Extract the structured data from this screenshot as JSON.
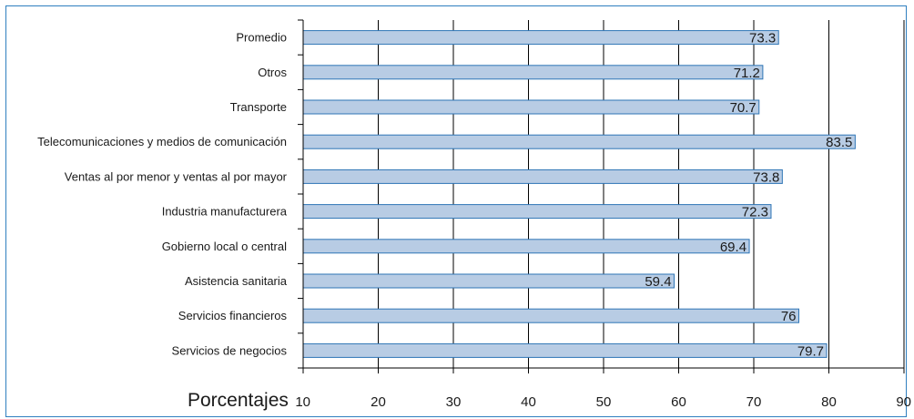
{
  "chart_data": {
    "type": "bar",
    "orientation": "horizontal",
    "categories": [
      "Promedio",
      "Otros",
      "Transporte",
      "Telecomunicaciones y medios de comunicación",
      "Ventas al por menor y ventas al por mayor",
      "Industria manufacturera",
      "Gobierno local o central",
      "Asistencia sanitaria",
      "Servicios financieros",
      "Servicios de negocios"
    ],
    "values": [
      73.3,
      71.2,
      70.7,
      83.5,
      73.8,
      72.3,
      69.4,
      59.4,
      76,
      79.7
    ],
    "value_labels": [
      "73.3",
      "71.2",
      "70.7",
      "83.5",
      "73.8",
      "72.3",
      "69.4",
      "59.4",
      "76",
      "79.7"
    ],
    "xlabel": "Porcentajes",
    "xlim": [
      10,
      90
    ],
    "xticks": [
      "10",
      "20",
      "30",
      "40",
      "50",
      "60",
      "70",
      "80",
      "90"
    ],
    "grid": "vertical",
    "legend": "none",
    "colors": {
      "bar_fill": "#b8cce4",
      "bar_stroke": "#2e75b6",
      "frame": "#2f7fbf",
      "grid": "#000000"
    }
  }
}
